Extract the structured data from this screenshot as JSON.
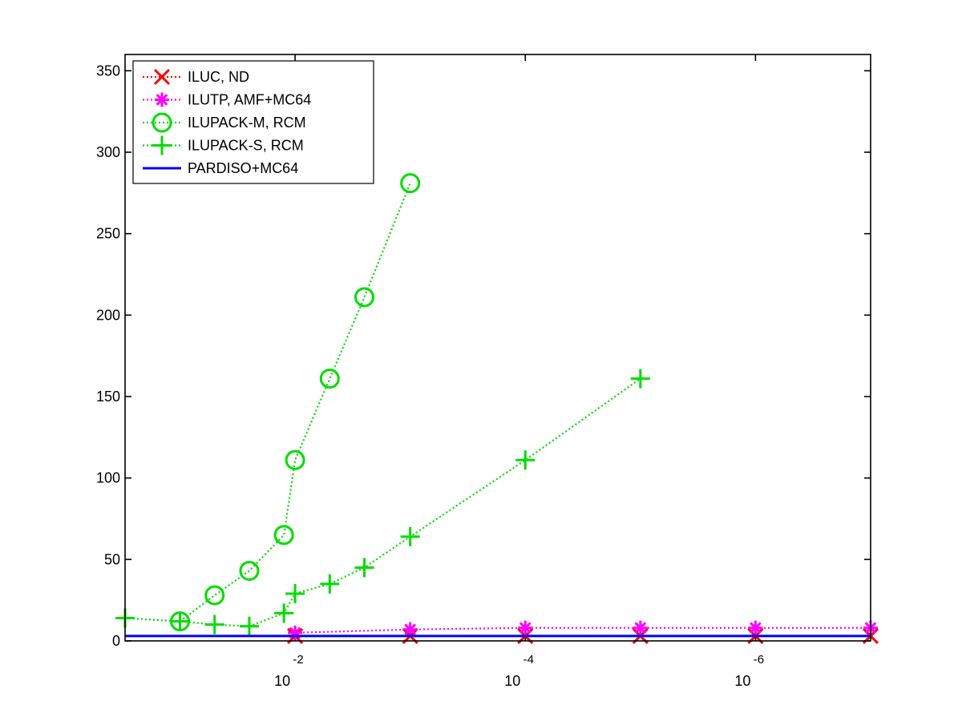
{
  "chart_data": {
    "type": "line",
    "title": "",
    "xlabel": "",
    "ylabel": "",
    "x_scale": "log",
    "x_axis_reversed": true,
    "xlim": [
      0.3,
      1e-07
    ],
    "ylim": [
      0,
      360
    ],
    "x_ticks": [
      {
        "base": "10",
        "exponent": "-2",
        "value": 0.01
      },
      {
        "base": "10",
        "exponent": "-4",
        "value": 0.0001
      },
      {
        "base": "10",
        "exponent": "-6",
        "value": 1e-06
      }
    ],
    "y_ticks": [
      "0",
      "50",
      "100",
      "150",
      "200",
      "250",
      "300",
      "350"
    ],
    "legend_position": "top-left",
    "series": [
      {
        "name": "ILUC,  ND",
        "color": "#ff0000",
        "marker": "x",
        "line_style": "dotted",
        "points": [
          [
            0.01,
            3
          ],
          [
            0.001,
            3
          ],
          [
            0.0001,
            3
          ],
          [
            1e-05,
            3
          ],
          [
            1e-06,
            3
          ],
          [
            1e-07,
            3
          ]
        ]
      },
      {
        "name": "ILUTP, AMF+MC64",
        "color": "#ff00ff",
        "marker": "asterisk",
        "line_style": "dotted",
        "points": [
          [
            0.01,
            5
          ],
          [
            0.001,
            7
          ],
          [
            0.0001,
            8
          ],
          [
            1e-05,
            8
          ],
          [
            1e-06,
            8
          ],
          [
            1e-07,
            8
          ]
        ]
      },
      {
        "name": "ILUPACK-M, RCM",
        "color": "#00dd00",
        "marker": "circle",
        "line_style": "dotted",
        "points": [
          [
            0.1,
            12
          ],
          [
            0.05,
            28
          ],
          [
            0.025,
            43
          ],
          [
            0.0125,
            65
          ],
          [
            0.01,
            111
          ],
          [
            0.005,
            161
          ],
          [
            0.0025,
            211
          ],
          [
            0.001,
            281
          ]
        ]
      },
      {
        "name": "ILUPACK-S, RCM",
        "color": "#00dd00",
        "marker": "plus",
        "line_style": "dotted",
        "points": [
          [
            0.3,
            14
          ],
          [
            0.1,
            12
          ],
          [
            0.05,
            10
          ],
          [
            0.025,
            9
          ],
          [
            0.0125,
            17
          ],
          [
            0.01,
            29
          ],
          [
            0.005,
            35
          ],
          [
            0.0025,
            45
          ],
          [
            0.001,
            64
          ],
          [
            0.0001,
            111
          ],
          [
            1e-05,
            161
          ]
        ]
      },
      {
        "name": "PARDISO+MC64",
        "color": "#0000ff",
        "marker": "none",
        "line_style": "solid",
        "points": [
          [
            0.3,
            3
          ],
          [
            1e-07,
            3
          ]
        ]
      }
    ]
  }
}
